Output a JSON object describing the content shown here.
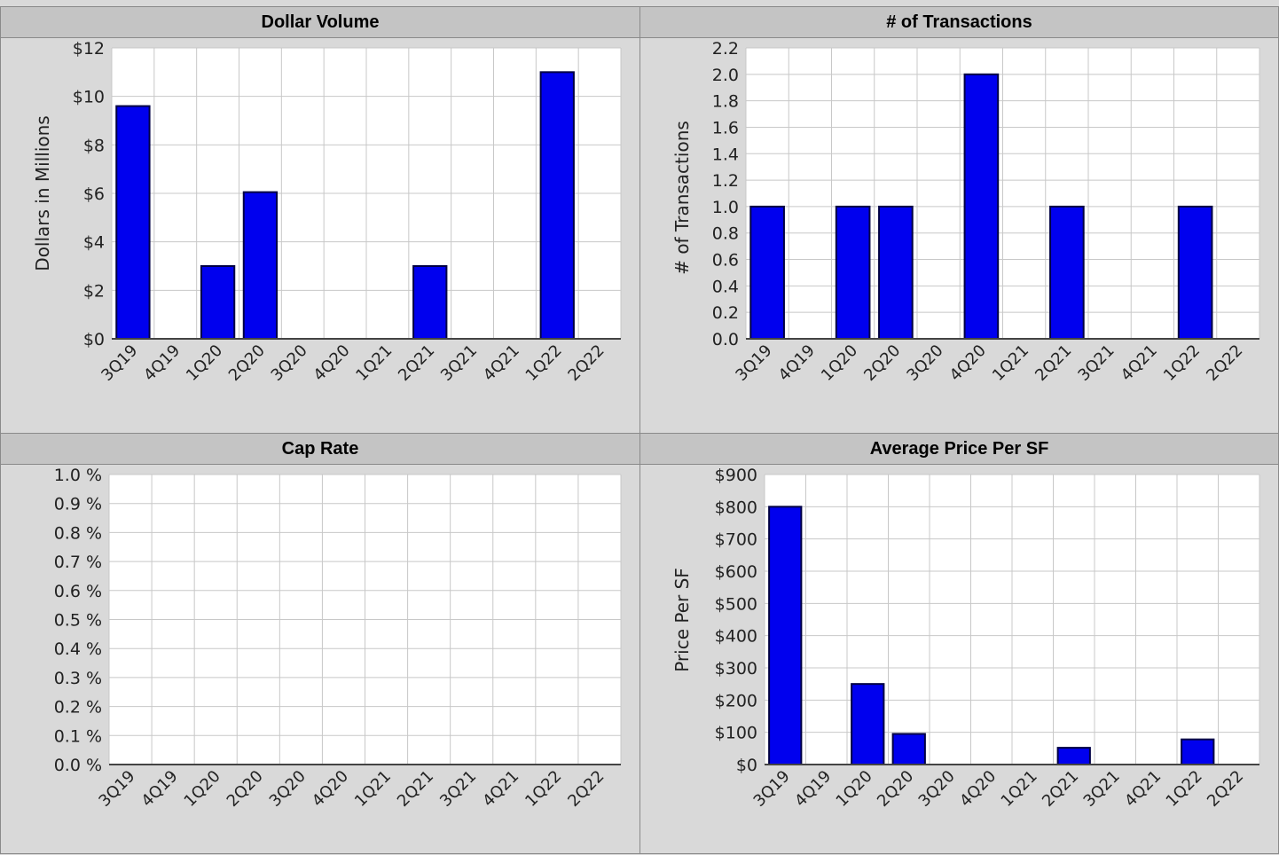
{
  "colors": {
    "bar": "#0000ee",
    "bar_edge": "#000044",
    "plot_bg": "#ffffff",
    "grid": "#c8c8c8"
  },
  "chart_data": [
    {
      "id": "dollar_volume",
      "type": "bar",
      "title": "Dollar Volume",
      "ylabel": "Dollars in Millions",
      "xlabel": "",
      "ylim": [
        0,
        12
      ],
      "yticks": [
        0,
        2,
        4,
        6,
        8,
        10,
        12
      ],
      "ytick_labels": [
        "$0",
        "$2",
        "$4",
        "$6",
        "$8",
        "$10",
        "$12"
      ],
      "categories": [
        "3Q19",
        "4Q19",
        "1Q20",
        "2Q20",
        "3Q20",
        "4Q20",
        "1Q21",
        "2Q21",
        "3Q21",
        "4Q21",
        "1Q22",
        "2Q22"
      ],
      "values": [
        9.6,
        0,
        3.0,
        6.05,
        0,
        0,
        0,
        3.0,
        0,
        0,
        11.0,
        0
      ],
      "grid": true,
      "legend": "none"
    },
    {
      "id": "transactions",
      "type": "bar",
      "title": "# of Transactions",
      "ylabel": "# of Transactions",
      "xlabel": "",
      "ylim": [
        0,
        2.2
      ],
      "yticks": [
        0,
        0.2,
        0.4,
        0.6,
        0.8,
        1.0,
        1.2,
        1.4,
        1.6,
        1.8,
        2.0,
        2.2
      ],
      "ytick_labels": [
        "0.0",
        "0.2",
        "0.4",
        "0.6",
        "0.8",
        "1.0",
        "1.2",
        "1.4",
        "1.6",
        "1.8",
        "2.0",
        "2.2"
      ],
      "categories": [
        "3Q19",
        "4Q19",
        "1Q20",
        "2Q20",
        "3Q20",
        "4Q20",
        "1Q21",
        "2Q21",
        "3Q21",
        "4Q21",
        "1Q22",
        "2Q22"
      ],
      "values": [
        1,
        0,
        1,
        1,
        0,
        2,
        0,
        1,
        0,
        0,
        1,
        0
      ],
      "grid": true,
      "legend": "none"
    },
    {
      "id": "cap_rate",
      "type": "bar",
      "title": "Cap Rate",
      "ylabel": "",
      "xlabel": "",
      "ylim": [
        0,
        1.0
      ],
      "yticks": [
        0,
        0.1,
        0.2,
        0.3,
        0.4,
        0.5,
        0.6,
        0.7,
        0.8,
        0.9,
        1.0
      ],
      "ytick_labels": [
        "0.0 %",
        "0.1 %",
        "0.2 %",
        "0.3 %",
        "0.4 %",
        "0.5 %",
        "0.6 %",
        "0.7 %",
        "0.8 %",
        "0.9 %",
        "1.0 %"
      ],
      "categories": [
        "3Q19",
        "4Q19",
        "1Q20",
        "2Q20",
        "3Q20",
        "4Q20",
        "1Q21",
        "2Q21",
        "3Q21",
        "4Q21",
        "1Q22",
        "2Q22"
      ],
      "values": [
        0,
        0,
        0,
        0,
        0,
        0,
        0,
        0,
        0,
        0,
        0,
        0
      ],
      "grid": true,
      "legend": "none"
    },
    {
      "id": "price_per_sf",
      "type": "bar",
      "title": "Average Price Per SF",
      "ylabel": "Price Per SF",
      "xlabel": "",
      "ylim": [
        0,
        900
      ],
      "yticks": [
        0,
        100,
        200,
        300,
        400,
        500,
        600,
        700,
        800,
        900
      ],
      "ytick_labels": [
        "$0",
        "$100",
        "$200",
        "$300",
        "$400",
        "$500",
        "$600",
        "$700",
        "$800",
        "$900"
      ],
      "categories": [
        "3Q19",
        "4Q19",
        "1Q20",
        "2Q20",
        "3Q20",
        "4Q20",
        "1Q21",
        "2Q21",
        "3Q21",
        "4Q21",
        "1Q22",
        "2Q22"
      ],
      "values": [
        800,
        0,
        250,
        95,
        0,
        0,
        0,
        52,
        0,
        0,
        78,
        0
      ],
      "grid": true,
      "legend": "none"
    }
  ]
}
